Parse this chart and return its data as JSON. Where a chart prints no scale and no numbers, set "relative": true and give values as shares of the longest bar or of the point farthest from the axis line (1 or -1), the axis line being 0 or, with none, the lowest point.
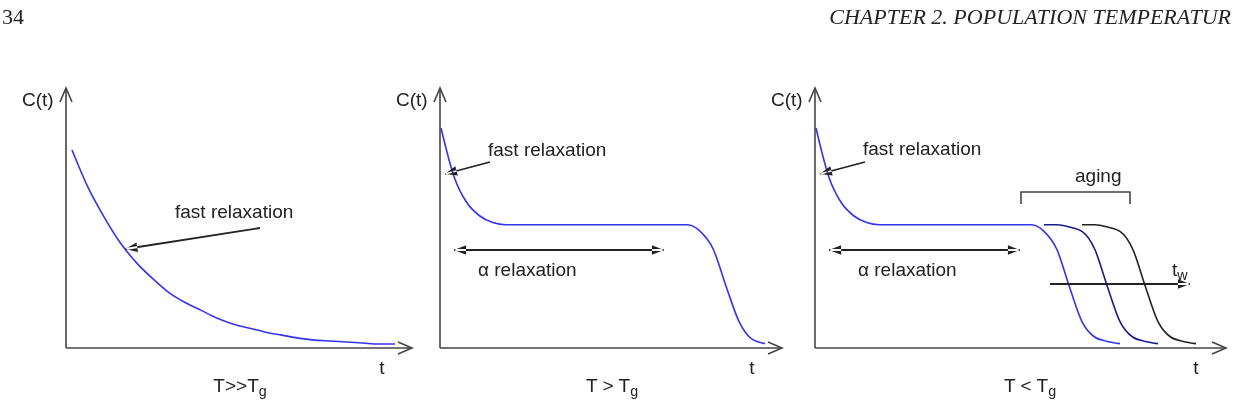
{
  "chart_data": [
    {
      "type": "other",
      "annotations": [
        "34",
        "CHAPTER 2.  POPULATION TEMPERATUR"
      ]
    },
    {
      "type": "line",
      "relative": true,
      "title": "T>>T$_{g}$",
      "xlabel": "t",
      "ylabel": "C(t)",
      "marker": "none",
      "line_style": "solid",
      "categories": [
        null,
        null,
        null,
        null,
        null,
        null,
        null,
        null,
        null,
        null,
        null,
        null,
        null,
        null,
        null,
        null,
        null,
        null,
        null,
        null,
        null
      ],
      "series": [
        {
          "color": "#3333ee",
          "values": [
            1,
            0.81,
            0.66,
            0.53,
            0.43,
            0.35,
            0.28,
            0.23,
            0.19,
            0.15,
            0.12,
            0.1,
            0.08,
            0.065,
            0.05,
            0.04,
            0.035,
            0.03,
            0.025,
            0.02,
            0.02
          ]
        }
      ],
      "annotations": [
        "fast relaxation"
      ]
    },
    {
      "type": "line",
      "relative": true,
      "title": "T > T$_{g}$",
      "xlabel": "t",
      "ylabel": "C(t)",
      "marker": "none",
      "line_style": "solid",
      "categories": [
        null,
        null,
        null,
        null,
        null,
        null,
        null,
        null,
        null,
        null,
        null,
        null,
        null,
        null,
        null,
        null,
        null,
        null,
        null,
        null,
        null,
        null,
        null,
        null,
        null,
        null
      ],
      "series": [
        {
          "color": "#3333ee",
          "values": [
            1,
            0.78,
            0.66,
            0.6,
            0.57,
            0.56,
            0.56,
            0.56,
            0.56,
            0.56,
            0.56,
            0.56,
            0.56,
            0.56,
            0.56,
            0.56,
            0.56,
            0.56,
            0.56,
            0.56,
            0.53,
            0.45,
            0.28,
            0.12,
            0.04,
            0.02
          ]
        }
      ],
      "annotations": [
        "fast relaxation",
        "α relaxation"
      ]
    },
    {
      "type": "line",
      "relative": true,
      "title": "T < T$_{g}$",
      "xlabel": "t",
      "ylabel": "C(t)",
      "marker": "none",
      "line_style": "solid",
      "categories": [
        null,
        null,
        null,
        null,
        null,
        null,
        null,
        null,
        null,
        null,
        null,
        null,
        null,
        null,
        null,
        null,
        null,
        null,
        null,
        null,
        null,
        null,
        null,
        null,
        null,
        null,
        null,
        null,
        null,
        null,
        null
      ],
      "series": [
        {
          "color": "#3333ee",
          "values": [
            1,
            0.78,
            0.66,
            0.6,
            0.57,
            0.56,
            0.56,
            0.56,
            0.56,
            0.56,
            0.56,
            0.56,
            0.56,
            0.56,
            0.56,
            0.56,
            0.56,
            0.56,
            0.53,
            0.45,
            0.28,
            0.12,
            0.05,
            0.03,
            0.02,
            null,
            null,
            null,
            null,
            null,
            null
          ]
        },
        {
          "color": "#1a1a8c",
          "values": [
            null,
            null,
            null,
            null,
            null,
            null,
            null,
            null,
            null,
            null,
            null,
            null,
            null,
            null,
            null,
            null,
            null,
            null,
            0.56,
            0.56,
            0.55,
            0.53,
            0.45,
            0.28,
            0.12,
            0.05,
            0.03,
            0.02,
            null,
            null,
            null
          ]
        },
        {
          "color": "#222222",
          "values": [
            null,
            null,
            null,
            null,
            null,
            null,
            null,
            null,
            null,
            null,
            null,
            null,
            null,
            null,
            null,
            null,
            null,
            null,
            null,
            null,
            null,
            0.56,
            0.56,
            0.55,
            0.53,
            0.45,
            0.28,
            0.12,
            0.05,
            0.03,
            0.02
          ]
        }
      ],
      "annotations": [
        "fast relaxation",
        "α relaxation",
        "aging",
        "t$_{w}$"
      ]
    }
  ]
}
